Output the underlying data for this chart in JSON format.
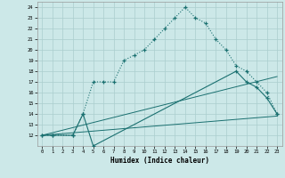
{
  "bg_color": "#cce8e8",
  "grid_color": "#aacece",
  "line_color": "#1a7070",
  "xlabel": "Humidex (Indice chaleur)",
  "xlim": [
    -0.5,
    23.5
  ],
  "ylim": [
    11,
    24.5
  ],
  "yticks": [
    12,
    13,
    14,
    15,
    16,
    17,
    18,
    19,
    20,
    21,
    22,
    23,
    24
  ],
  "xticks": [
    0,
    1,
    2,
    3,
    4,
    5,
    6,
    7,
    8,
    9,
    10,
    11,
    12,
    13,
    14,
    15,
    16,
    17,
    18,
    19,
    20,
    21,
    22,
    23
  ],
  "curve1_x": [
    0,
    1,
    3,
    4,
    5,
    6,
    7,
    8,
    9,
    10,
    11,
    12,
    13,
    14,
    15,
    16,
    17,
    18,
    19,
    20,
    21,
    22,
    23
  ],
  "curve1_y": [
    12,
    12,
    12,
    14,
    17,
    17,
    17,
    19,
    19.5,
    20,
    21,
    22,
    23,
    24,
    23,
    22.5,
    21,
    20,
    18.5,
    18,
    17,
    16,
    14
  ],
  "curve2_x": [
    0,
    1,
    3,
    4,
    5,
    19,
    20,
    21,
    22,
    23
  ],
  "curve2_y": [
    12,
    12,
    12,
    14,
    11,
    18,
    17,
    16.5,
    15.5,
    14
  ],
  "curve3_x": [
    0,
    23
  ],
  "curve3_y": [
    12,
    17.5
  ],
  "curve4_x": [
    0,
    23
  ],
  "curve4_y": [
    12,
    13.8
  ]
}
